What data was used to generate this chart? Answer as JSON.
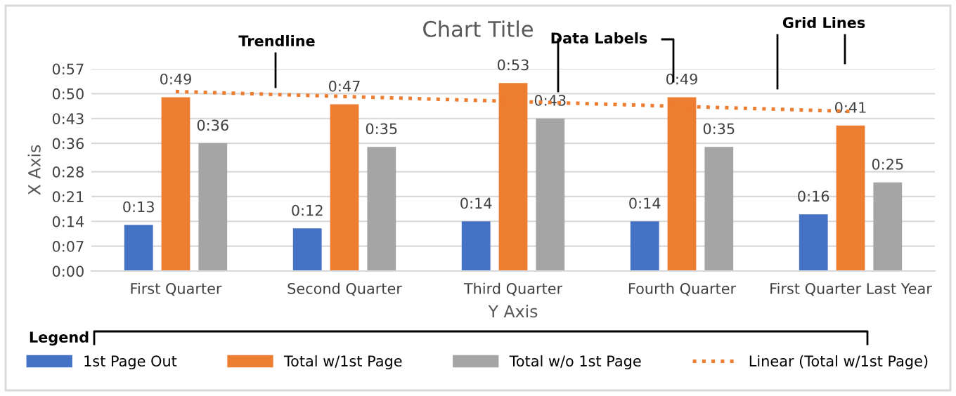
{
  "chart_data": {
    "type": "bar",
    "title": "Chart Title",
    "xlabel": "Y Axis",
    "ylabel": "X Axis",
    "categories": [
      "First Quarter",
      "Second Quarter",
      "Third Quarter",
      "Fourth Quarter",
      "First Quarter Last Year"
    ],
    "series": [
      {
        "name": "1st Page Out",
        "color": "#4472c4",
        "values": [
          13,
          12,
          14,
          14,
          16
        ],
        "value_labels": [
          "0:13",
          "0:12",
          "0:14",
          "0:14",
          "0:16"
        ]
      },
      {
        "name": "Total w/1st Page",
        "color": "#ed7d31",
        "values": [
          49,
          47,
          53,
          49,
          41
        ],
        "value_labels": [
          "0:49",
          "0:47",
          "0:53",
          "0:49",
          "0:41"
        ]
      },
      {
        "name": "Total w/o 1st Page",
        "color": "#a5a5a5",
        "values": [
          36,
          35,
          43,
          35,
          25
        ],
        "value_labels": [
          "0:36",
          "0:35",
          "0:43",
          "0:35",
          "0:25"
        ]
      },
      {
        "name": "Linear (Total w/1st Page)",
        "type": "line",
        "color": "#ed7d31",
        "line_style": "dotted",
        "values": [
          50.6,
          49.2,
          47.8,
          46.4,
          45.0
        ]
      }
    ],
    "ylim": [
      0,
      57
    ],
    "yticks": [
      {
        "value": 0,
        "label": "0:00"
      },
      {
        "value": 7,
        "label": "0:07"
      },
      {
        "value": 14,
        "label": "0:14"
      },
      {
        "value": 21,
        "label": "0:21"
      },
      {
        "value": 28,
        "label": "0:28"
      },
      {
        "value": 36,
        "label": "0:36"
      },
      {
        "value": 43,
        "label": "0:43"
      },
      {
        "value": 50,
        "label": "0:50"
      },
      {
        "value": 57,
        "label": "0:57"
      }
    ],
    "grid": "y",
    "legend": "bottom",
    "annotations": [
      "Trendline",
      "Data Labels",
      "Grid Lines",
      "Legend"
    ]
  }
}
